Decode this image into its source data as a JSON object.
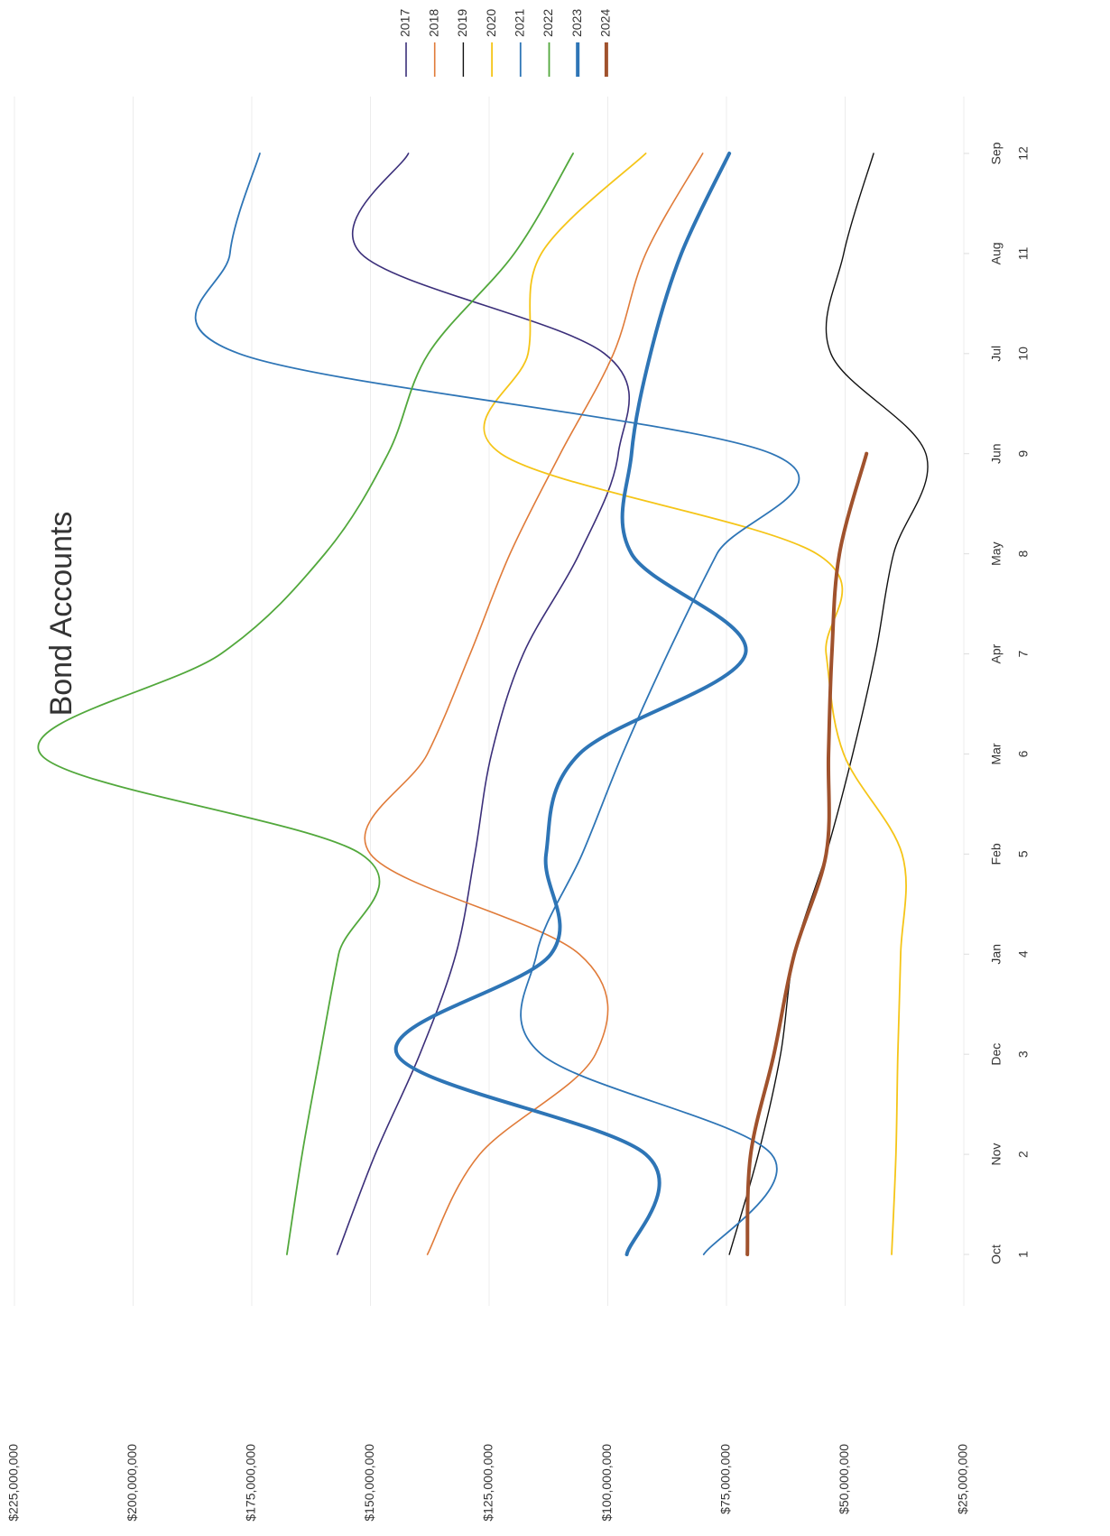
{
  "chart_data": {
    "type": "line",
    "title": "Bond Accounts",
    "categories": [
      "Oct",
      "Nov",
      "Dec",
      "Jan",
      "Feb",
      "Mar",
      "Apr",
      "May",
      "Jun",
      "Jul",
      "Aug",
      "Sep"
    ],
    "x": [
      1,
      2,
      3,
      4,
      5,
      6,
      7,
      8,
      9,
      10,
      11,
      12
    ],
    "xlim": [
      1,
      12
    ],
    "ylim": [
      25000000,
      225000000
    ],
    "yticks": [
      {
        "value": 25000000,
        "label": "$25,000,000"
      },
      {
        "value": 50000000,
        "label": "$50,000,000"
      },
      {
        "value": 75000000,
        "label": "$75,000,000"
      },
      {
        "value": 100000000,
        "label": "$100,000,000"
      },
      {
        "value": 125000000,
        "label": "$125,000,000"
      },
      {
        "value": 150000000,
        "label": "$150,000,000"
      },
      {
        "value": 175000000,
        "label": "$175,000,000"
      },
      {
        "value": 200000000,
        "label": "$200,000,000"
      },
      {
        "value": 225000000,
        "label": "$225,000,000"
      }
    ],
    "grid": true,
    "smooth": true,
    "legend": "top-right",
    "series": [
      {
        "name": "2017",
        "color": "#3b2f7a",
        "width": 1.6,
        "values": [
          157000000,
          149000000,
          139600000,
          132000000,
          128000000,
          124500000,
          117800000,
          106000000,
          97800000,
          100700000,
          152000000,
          142000000
        ]
      },
      {
        "name": "2018",
        "color": "#e07b39",
        "width": 1.6,
        "values": [
          138000000,
          127000000,
          102600000,
          106000000,
          150000000,
          138000000,
          129000000,
          120600000,
          110000000,
          98800000,
          92000000,
          80000000
        ]
      },
      {
        "name": "2019",
        "color": "#111111",
        "width": 1.4,
        "values": [
          74400000,
          68300000,
          63600000,
          60700000,
          54000000,
          48400000,
          43600000,
          39800000,
          33000000,
          53000000,
          50300000,
          44000000
        ]
      },
      {
        "name": "2020",
        "color": "#f5c518",
        "width": 1.8,
        "values": [
          40200000,
          39300000,
          38900000,
          38300000,
          38000000,
          50300000,
          54000000,
          56000000,
          122500000,
          116800000,
          114000000,
          92000000
        ]
      },
      {
        "name": "2021",
        "color": "#2e75b6",
        "width": 1.8,
        "values": [
          79800000,
          65500000,
          114000000,
          115000000,
          105400000,
          96900000,
          87400000,
          77000000,
          65500000,
          177700000,
          179600000,
          173300000
        ]
      },
      {
        "name": "2022",
        "color": "#52a83c",
        "width": 1.8,
        "values": [
          167600000,
          164400000,
          160600000,
          156700000,
          152000000,
          219500000,
          181500000,
          159600000,
          146300000,
          137800000,
          119700000,
          107300000
        ]
      },
      {
        "name": "2023",
        "color": "#2e75b6",
        "width": 4,
        "values": [
          96000000,
          92000000,
          144400000,
          112000000,
          113000000,
          106000000,
          71000000,
          95000000,
          95000000,
          91000000,
          84500000,
          74400000
        ]
      },
      {
        "name": "2024",
        "color": "#a0522d",
        "width": 4,
        "values": [
          70600000,
          69900000,
          65000000,
          60700000,
          54000000,
          53500000,
          52800000,
          51200000,
          45500000,
          null,
          null,
          null
        ]
      }
    ]
  }
}
